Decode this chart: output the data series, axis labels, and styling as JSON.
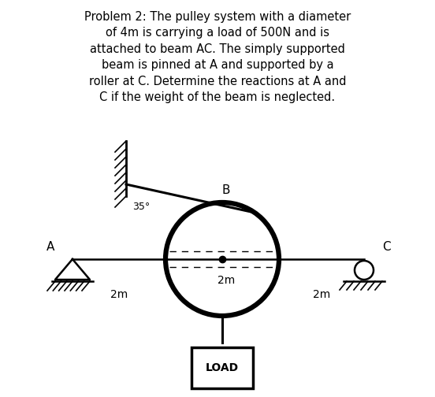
{
  "title_text": "Problem 2: The pulley system with a diameter\nof 4m is carrying a load of 500N and is\nattached to beam AC. The simply supported\nbeam is pinned at A and supported by a\nroller at C. Determine the reactions at A and\nC if the weight of the beam is neglected.",
  "title_fontsize": 10.5,
  "bg_color": "#ffffff",
  "text_color": "#000000",
  "beam_color": "#000000",
  "circle_color": "#000000",
  "angle_label": "35°",
  "load_text": "LOAD",
  "label_A": "A",
  "label_B": "B",
  "label_C": "C",
  "dim_AB": "2m",
  "dim_radius": "2m",
  "dim_BC": "2m"
}
